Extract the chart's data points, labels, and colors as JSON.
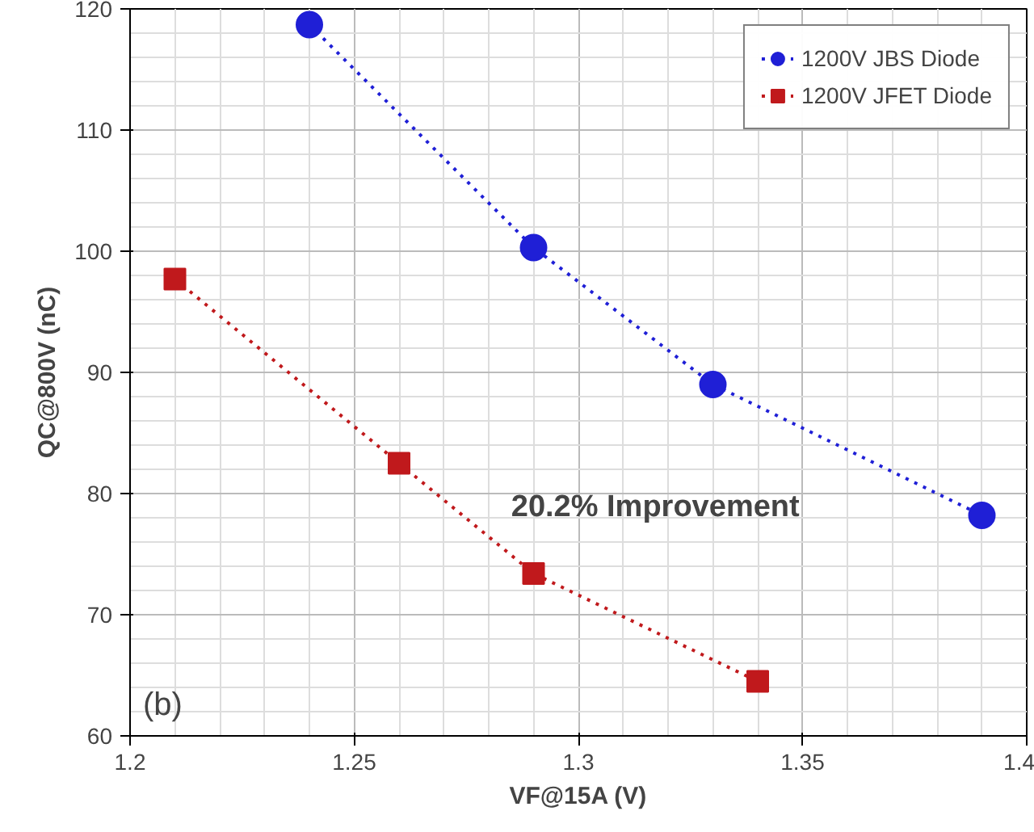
{
  "chart_data": {
    "type": "line",
    "xlabel": "VF@15A (V)",
    "ylabel": "QC@800V (nC)",
    "xlim": [
      1.2,
      1.4
    ],
    "xticks": [
      1.2,
      1.25,
      1.3,
      1.35,
      1.4
    ],
    "ylim": [
      60,
      120
    ],
    "yticks": [
      60,
      70,
      80,
      90,
      100,
      110,
      120
    ],
    "grid": true,
    "legend": "top right",
    "line_style": "dotted",
    "series": [
      {
        "name": "1200V JBS Diode",
        "color": "#1f1fd6",
        "marker": "circle",
        "x": [
          1.24,
          1.29,
          1.33,
          1.39
        ],
        "values": [
          118.7,
          100.3,
          89.0,
          78.2
        ]
      },
      {
        "name": "1200V JFET Diode",
        "color": "#c0191c",
        "marker": "square",
        "x": [
          1.21,
          1.26,
          1.29,
          1.34
        ],
        "values": [
          97.7,
          82.5,
          73.4,
          64.5
        ]
      }
    ],
    "annotations": [
      "20.2% Improvement",
      "(b)"
    ]
  }
}
